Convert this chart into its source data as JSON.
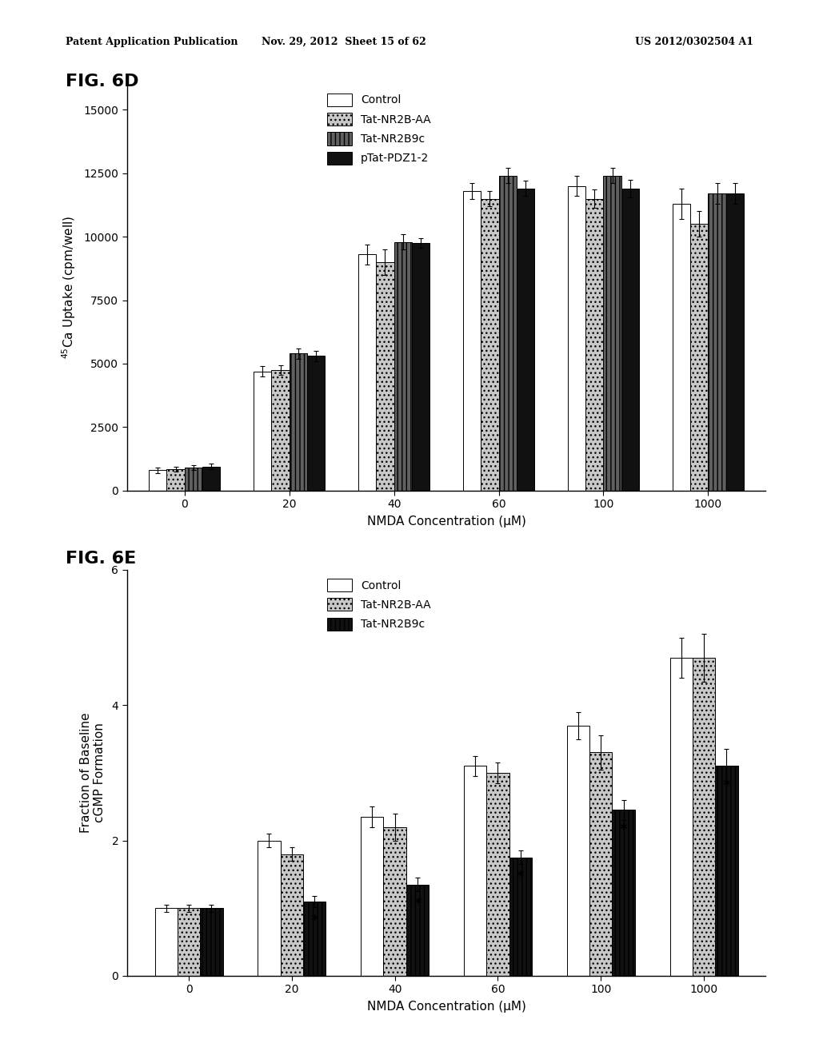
{
  "fig6d": {
    "title": "FIG. 6D",
    "xlabel": "NMDA Concentration (μM)",
    "ylabel": "$^{45}$Ca Uptake (cpm/well)",
    "x_labels": [
      "0",
      "20",
      "40",
      "60",
      "100",
      "1000"
    ],
    "series_labels": [
      "Control",
      "Tat-NR2B-AA",
      "Tat-NR2B9c",
      "pTat-PDZ1-2"
    ],
    "ylim": [
      0,
      16000
    ],
    "yticks": [
      0,
      2500,
      5000,
      7500,
      10000,
      12500,
      15000
    ],
    "data": [
      [
        800,
        4700,
        9300,
        11800,
        12000,
        11300
      ],
      [
        850,
        4750,
        9000,
        11500,
        11500,
        10500
      ],
      [
        900,
        5400,
        9800,
        12400,
        12400,
        11700
      ],
      [
        950,
        5300,
        9750,
        11900,
        11900,
        11700
      ]
    ],
    "errors": [
      [
        100,
        200,
        400,
        300,
        400,
        600
      ],
      [
        100,
        200,
        500,
        300,
        350,
        500
      ],
      [
        100,
        200,
        300,
        300,
        300,
        400
      ],
      [
        100,
        200,
        200,
        300,
        350,
        400
      ]
    ]
  },
  "fig6e": {
    "title": "FIG. 6E",
    "xlabel": "NMDA Concentration (μM)",
    "ylabel": "Fraction of Baseline\ncGMP Formation",
    "x_labels": [
      "0",
      "20",
      "40",
      "60",
      "100",
      "1000"
    ],
    "series_labels": [
      "Control",
      "Tat-NR2B-AA",
      "Tat-NR2B9c"
    ],
    "ylim": [
      0,
      6
    ],
    "yticks": [
      0,
      2,
      4,
      6
    ],
    "data": [
      [
        1.0,
        2.0,
        2.35,
        3.1,
        3.7,
        4.7
      ],
      [
        1.0,
        1.8,
        2.2,
        3.0,
        3.3,
        4.7
      ],
      [
        1.0,
        1.1,
        1.35,
        1.75,
        2.45,
        3.1
      ]
    ],
    "errors": [
      [
        0.05,
        0.1,
        0.15,
        0.15,
        0.2,
        0.3
      ],
      [
        0.05,
        0.1,
        0.2,
        0.15,
        0.25,
        0.35
      ],
      [
        0.05,
        0.08,
        0.1,
        0.1,
        0.15,
        0.25
      ]
    ],
    "asterisk_group_indices": [
      1,
      2,
      3,
      4,
      5
    ]
  },
  "header_left": "Patent Application Publication",
  "header_mid": "Nov. 29, 2012  Sheet 15 of 62",
  "header_right": "US 2012/0302504 A1",
  "bg_color": "#ffffff",
  "text_color": "#000000"
}
